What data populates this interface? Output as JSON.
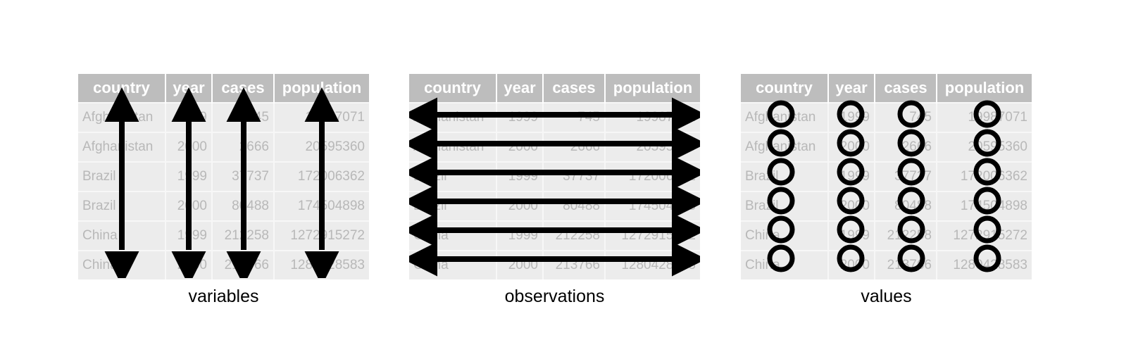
{
  "columns": [
    "country",
    "year",
    "cases",
    "population"
  ],
  "rows": [
    [
      "Afghanistan",
      "1999",
      "745",
      "19987071"
    ],
    [
      "Afghanistan",
      "2000",
      "2666",
      "20595360"
    ],
    [
      "Brazil",
      "1999",
      "37737",
      "172006362"
    ],
    [
      "Brazil",
      "2000",
      "80488",
      "174504898"
    ],
    [
      "China",
      "1999",
      "212258",
      "1272915272"
    ],
    [
      "China",
      "2000",
      "213766",
      "1280428583"
    ]
  ],
  "captions": {
    "variables": "variables",
    "observations": "observations",
    "values": "values"
  },
  "colors": {
    "header_bg": "#bdbdbd",
    "cell_bg": "#ececec",
    "cell_text": "#b8b8b8",
    "annotation": "#000000"
  }
}
